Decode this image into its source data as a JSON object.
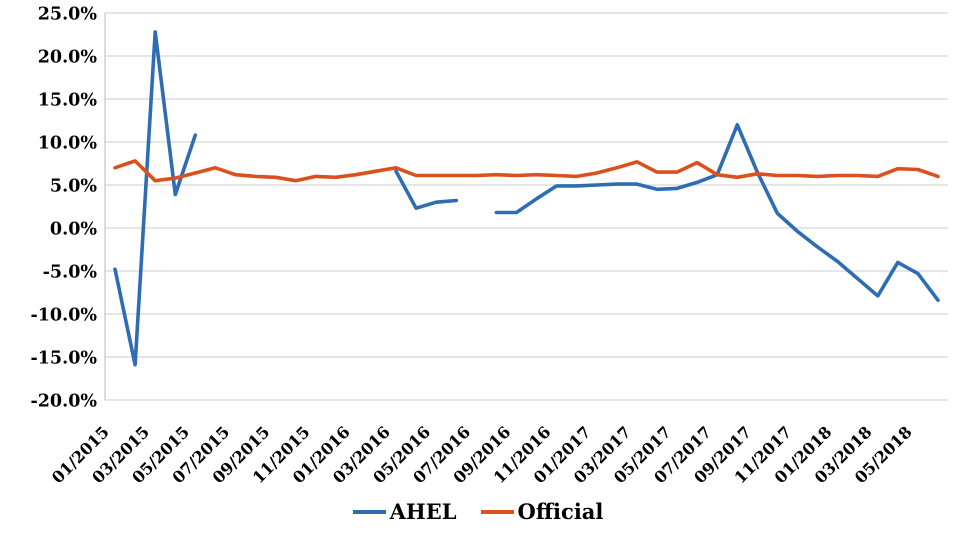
{
  "chart_data": {
    "type": "line",
    "title": "",
    "xlabel": "",
    "ylabel": "",
    "categories": [
      "01/2015",
      "02/2015",
      "03/2015",
      "04/2015",
      "05/2015",
      "06/2015",
      "07/2015",
      "08/2015",
      "09/2015",
      "10/2015",
      "11/2015",
      "12/2015",
      "01/2016",
      "02/2016",
      "03/2016",
      "04/2016",
      "05/2016",
      "06/2016",
      "07/2016",
      "08/2016",
      "09/2016",
      "10/2016",
      "11/2016",
      "12/2016",
      "01/2017",
      "02/2017",
      "03/2017",
      "04/2017",
      "05/2017",
      "06/2017",
      "07/2017",
      "08/2017",
      "09/2017",
      "10/2017",
      "11/2017",
      "12/2017",
      "01/2018",
      "02/2018",
      "03/2018",
      "04/2018",
      "05/2018",
      "06/2018"
    ],
    "series": [
      {
        "name": "AHEL",
        "color": "#2E6DB4",
        "values": [
          -4.8,
          -15.9,
          22.8,
          3.9,
          10.8,
          null,
          null,
          null,
          null,
          null,
          null,
          null,
          null,
          null,
          6.6,
          2.3,
          3.0,
          3.2,
          null,
          1.8,
          1.8,
          3.4,
          4.9,
          4.9,
          5.0,
          5.1,
          5.1,
          4.5,
          4.6,
          5.3,
          6.2,
          12.0,
          6.5,
          1.7,
          -0.4,
          -2.2,
          -3.9,
          -5.9,
          -7.9,
          -4.0,
          -5.3,
          -8.4
        ]
      },
      {
        "name": "Official",
        "color": "#D9511C",
        "values": [
          7.0,
          7.8,
          5.5,
          5.8,
          6.4,
          7.0,
          6.2,
          6.0,
          5.9,
          5.5,
          6.0,
          5.9,
          6.2,
          6.6,
          7.0,
          6.1,
          6.1,
          6.1,
          6.1,
          6.2,
          6.1,
          6.2,
          6.1,
          6.0,
          6.4,
          7.0,
          7.7,
          6.5,
          6.5,
          7.6,
          6.2,
          5.9,
          6.3,
          6.1,
          6.1,
          6.0,
          6.1,
          6.1,
          6.0,
          6.9,
          6.8,
          6.0
        ]
      }
    ],
    "ylim": [
      -20,
      25
    ],
    "ytick_step": 5,
    "y_tick_labels": [
      "25.0%",
      "20.0%",
      "15.0%",
      "10.0%",
      "5.0%",
      "0.0%",
      "-5.0%",
      "-10.0%",
      "-15.0%",
      "-20.0%"
    ],
    "x_tick_labels": [
      "01/2015",
      "03/2015",
      "05/2015",
      "07/2015",
      "09/2015",
      "11/2015",
      "01/2016",
      "03/2016",
      "05/2016",
      "07/2016",
      "09/2016",
      "11/2016",
      "01/2017",
      "03/2017",
      "05/2017",
      "07/2017",
      "09/2017",
      "11/2017",
      "01/2018",
      "03/2018",
      "05/2018"
    ],
    "xtick_every": 2,
    "grid": "horizontal",
    "grid_color": "#D6D6D6",
    "axis_color": "#C9C9C9",
    "text_color": "#000000",
    "background": "#FFFFFF",
    "legend_position": "bottom"
  },
  "legend": {
    "items": [
      {
        "label": "AHEL",
        "color": "#2E6DB4"
      },
      {
        "label": "Official",
        "color": "#D9511C"
      }
    ]
  }
}
